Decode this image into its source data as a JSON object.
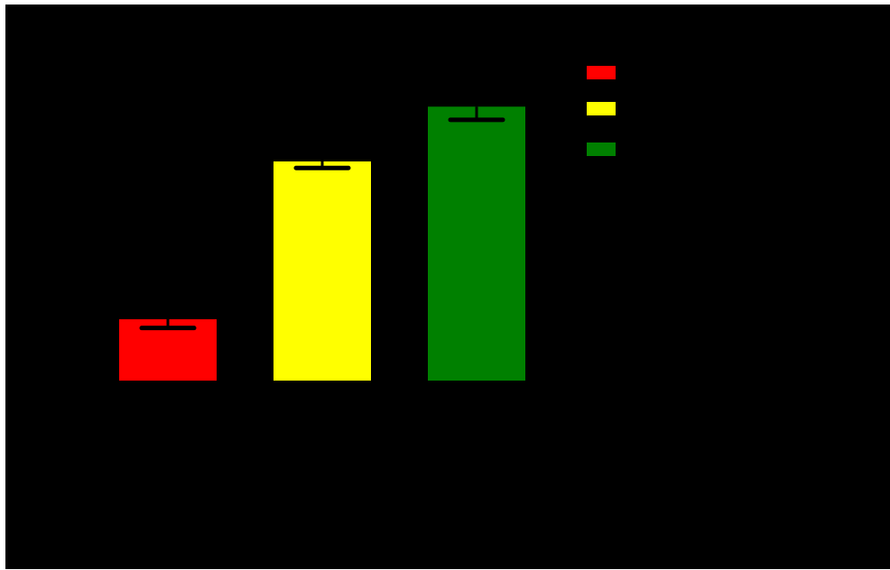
{
  "chart_data": {
    "type": "bar",
    "categories": [
      "",
      "",
      ""
    ],
    "values": [
      0.28,
      1.0,
      1.25
    ],
    "errors": [
      0.04,
      0.03,
      0.06
    ],
    "colors": [
      "#ff0000",
      "#ffff00",
      "#008000"
    ],
    "ylim": [
      0,
      1.75
    ],
    "title": "",
    "xlabel": "",
    "ylabel": "",
    "legend": {
      "placement": "top-right",
      "entries": [
        {
          "label": "",
          "color": "#ff0000"
        },
        {
          "label": "",
          "color": "#ffff00"
        },
        {
          "label": "",
          "color": "#008000"
        }
      ]
    },
    "grid": false
  },
  "theme": {
    "frame_color": "#ffffff",
    "background_color": "#000000",
    "errorbar_color": "#000000"
  }
}
